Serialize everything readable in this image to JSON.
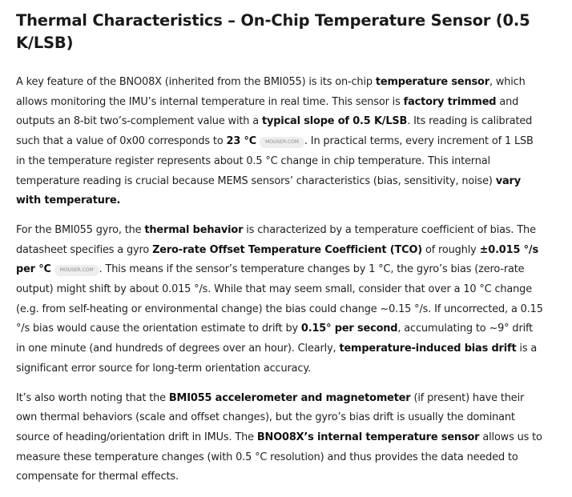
{
  "title": "Thermal Characteristics – On-Chip Temperature Sensor (0.5 K/LSB)",
  "source_badge": "MOUSER.COM",
  "p1": {
    "t1": "A key feature of the BNO08X (inherited from the BMI055) is its on-chip ",
    "b1": "temperature sensor",
    "t2": ", which allows monitoring the IMU’s internal temperature in real time. This sensor is ",
    "b2": "factory trimmed",
    "t3": " and outputs an 8-bit two’s-complement value with a ",
    "b3": "typical slope of 0.5 K/LSB",
    "t4": ". Its reading is calibrated such that a value of 0x00 corresponds to ",
    "b4": "23 °C",
    "t5": ". In practical terms, every increment of 1 LSB in the temperature register represents about 0.5 °C change in chip temperature. This internal temperature reading is crucial because MEMS sensors’ characteristics (bias, sensitivity, noise) ",
    "b5": "vary with temperature.",
    "t6": ""
  },
  "p2": {
    "t1": "For the BMI055 gyro, the ",
    "b1": "thermal behavior",
    "t2": " is characterized by a temperature coefficient of bias. The datasheet specifies a gyro ",
    "b2": "Zero-rate Offset Temperature Coefficient (TCO)",
    "t3": " of roughly ",
    "b3": "±0.015 °/s per °C",
    "t4": ". This means if the sensor’s temperature changes by 1 °C, the gyro’s bias (zero-rate output) might shift by about 0.015 °/s. While that may seem small, consider that over a 10 °C change (e.g. from self-heating or environmental change) the bias could change ~0.15 °/s. If uncorrected, a 0.15 °/s bias would cause the orientation estimate to drift by ",
    "b4": "0.15° per second",
    "t5": ", accumulating to ~9° drift in one minute (and hundreds of degrees over an hour). Clearly, ",
    "b5": "temperature-induced bias drift",
    "t6": " is a significant error source for long-term orientation accuracy."
  },
  "p3": {
    "t1": "It’s also worth noting that the ",
    "b1": "BMI055 accelerometer and magnetometer",
    "t2": " (if present) have their own thermal behaviors (scale and offset changes), but the gyro’s bias drift is usually the dominant source of heading/orientation drift in IMUs. The ",
    "b2": "BNO08X’s internal temperature sensor",
    "t3": " allows us to measure these temperature changes (with 0.5 °C resolution) and thus provides the data needed to compensate for thermal effects."
  }
}
